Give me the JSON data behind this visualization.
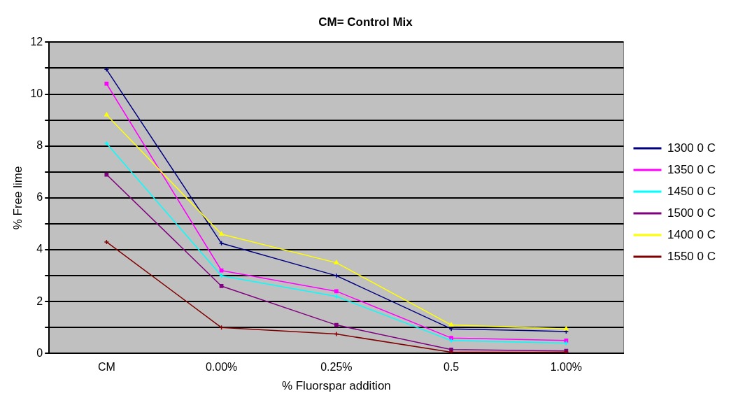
{
  "chart_data": {
    "type": "line",
    "title": "CM= Control Mix",
    "xlabel": "% Fluorspar addition",
    "ylabel": "% Free lime",
    "categories": [
      "CM",
      "0.00%",
      "0.25%",
      "0.5",
      "1.00%"
    ],
    "series": [
      {
        "name": "1300 0 C",
        "color": "#000080",
        "marker": "cross",
        "values": [
          10.95,
          4.25,
          3.0,
          0.95,
          0.85
        ]
      },
      {
        "name": "1350 0 C",
        "color": "#ff00ff",
        "marker": "square",
        "values": [
          10.4,
          3.2,
          2.4,
          0.6,
          0.5
        ]
      },
      {
        "name": "1450 0 C",
        "color": "#00ffff",
        "marker": "cross",
        "values": [
          8.1,
          3.0,
          2.2,
          0.5,
          0.4
        ]
      },
      {
        "name": "1500 0 C",
        "color": "#800080",
        "marker": "square",
        "values": [
          6.9,
          2.6,
          1.1,
          0.15,
          0.1
        ]
      },
      {
        "name": "1400 0 C",
        "color": "#ffff00",
        "marker": "triangle",
        "values": [
          9.2,
          4.6,
          3.5,
          1.1,
          0.95
        ]
      },
      {
        "name": "1550 0 C",
        "color": "#800000",
        "marker": "cross",
        "values": [
          4.3,
          1.0,
          0.75,
          0.05,
          0.05
        ]
      }
    ],
    "ylim": [
      0,
      12
    ],
    "yticks": [
      0,
      {
        "value": 1,
        "label": null
      },
      2,
      {
        "value": 3,
        "label": null
      },
      4,
      {
        "value": 5,
        "label": null
      },
      6,
      {
        "value": 7,
        "label": null
      },
      8,
      {
        "value": 9,
        "label": null
      },
      10,
      {
        "value": 11,
        "label": null
      },
      12
    ],
    "grid": "y",
    "legend": "right"
  }
}
